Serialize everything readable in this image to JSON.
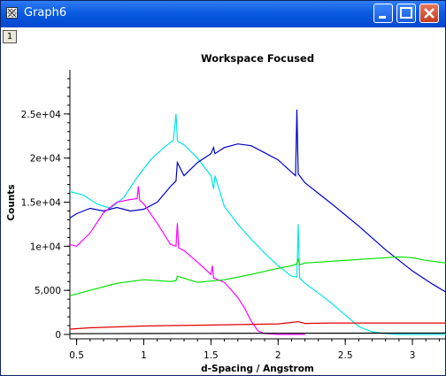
{
  "window": {
    "title": "Graph6",
    "layer_label": "1",
    "colors": {
      "titlebar": "#0a5be0",
      "close": "#d24a2a"
    }
  },
  "chart_data": {
    "type": "line",
    "title": "Workspace Focused",
    "xlabel": "d-Spacing / Angstrom",
    "ylabel": "Counts",
    "xlim": [
      0.45,
      3.25
    ],
    "ylim": [
      -500,
      30000
    ],
    "x_ticks": [
      0.5,
      1,
      1.5,
      2,
      2.5,
      3
    ],
    "x_tick_labels": [
      "0.5",
      "1",
      "1.5",
      "2",
      "2.5",
      "3"
    ],
    "y_ticks": [
      0,
      5000,
      10000,
      15000,
      20000,
      25000
    ],
    "y_tick_labels": [
      "0",
      "5,000",
      "1e+04",
      "1.5e+04",
      "2e+04",
      "2.5e+04"
    ],
    "grid": false,
    "series": [
      {
        "color": "#00e5e5",
        "x": [
          0.45,
          0.55,
          0.65,
          0.75,
          0.85,
          0.95,
          1.05,
          1.15,
          1.22,
          1.24,
          1.25,
          1.26,
          1.3,
          1.4,
          1.5,
          1.52,
          1.53,
          1.6,
          1.7,
          1.8,
          1.9,
          2.0,
          2.1,
          2.14,
          2.15,
          2.16,
          2.2,
          2.3,
          2.4,
          2.5,
          2.6,
          2.7,
          2.8,
          2.9,
          3.0,
          3.1,
          3.25
        ],
        "y": [
          16200,
          15800,
          14800,
          14300,
          15500,
          17800,
          19800,
          21200,
          22000,
          25000,
          22000,
          21800,
          21500,
          20000,
          18000,
          16500,
          18000,
          14500,
          12500,
          10800,
          9200,
          7800,
          6600,
          6500,
          12500,
          6400,
          5800,
          4700,
          3500,
          2200,
          900,
          300,
          100,
          0,
          0,
          0,
          0
        ]
      },
      {
        "color": "#0000c8",
        "x": [
          0.45,
          0.5,
          0.6,
          0.7,
          0.8,
          0.9,
          1.0,
          1.1,
          1.2,
          1.24,
          1.25,
          1.3,
          1.4,
          1.5,
          1.52,
          1.53,
          1.6,
          1.7,
          1.8,
          1.9,
          2.0,
          2.1,
          2.13,
          2.14,
          2.15,
          2.17,
          2.2,
          2.4,
          2.6,
          2.8,
          3.0,
          3.15,
          3.25
        ],
        "y": [
          13200,
          13700,
          14300,
          14000,
          14400,
          14000,
          14200,
          15000,
          16800,
          17400,
          19500,
          18000,
          19500,
          20500,
          21200,
          20500,
          21200,
          21600,
          21400,
          20600,
          19800,
          18400,
          18000,
          25500,
          18200,
          17800,
          17200,
          14800,
          12300,
          9600,
          7200,
          5700,
          4800
        ]
      },
      {
        "color": "#ff00ff",
        "x": [
          0.45,
          0.5,
          0.6,
          0.7,
          0.8,
          0.9,
          0.95,
          0.96,
          0.97,
          1.0,
          1.1,
          1.2,
          1.24,
          1.25,
          1.26,
          1.3,
          1.4,
          1.5,
          1.51,
          1.52,
          1.6,
          1.7,
          1.75,
          1.8,
          1.85,
          1.9,
          1.95,
          2.0,
          2.1,
          2.2
        ],
        "y": [
          10200,
          10000,
          11500,
          13800,
          15000,
          15300,
          15400,
          16800,
          15200,
          14800,
          12600,
          10200,
          10000,
          12600,
          9800,
          9500,
          8200,
          6800,
          7800,
          6400,
          5900,
          4200,
          3000,
          1500,
          400,
          100,
          50,
          0,
          0,
          0
        ]
      },
      {
        "color": "#00e000",
        "x": [
          0.45,
          0.6,
          0.8,
          1.0,
          1.2,
          1.24,
          1.25,
          1.4,
          1.6,
          1.8,
          2.0,
          2.1,
          2.14,
          2.15,
          2.16,
          2.2,
          2.4,
          2.6,
          2.8,
          2.9,
          3.0,
          3.1,
          3.25
        ],
        "y": [
          4400,
          5000,
          5800,
          6200,
          6000,
          6100,
          6600,
          5900,
          6200,
          6800,
          7500,
          7800,
          8000,
          8600,
          7900,
          8100,
          8300,
          8500,
          8700,
          8800,
          8700,
          8400,
          8100
        ]
      },
      {
        "color": "#e00000",
        "x": [
          0.45,
          0.6,
          0.8,
          1.0,
          1.2,
          1.4,
          1.6,
          1.8,
          2.0,
          2.15,
          2.2,
          2.4,
          2.6,
          2.8,
          3.0,
          3.25
        ],
        "y": [
          600,
          750,
          850,
          950,
          1000,
          1050,
          1100,
          1150,
          1200,
          1450,
          1250,
          1300,
          1300,
          1300,
          1300,
          1300
        ]
      },
      {
        "color": "#000000",
        "x": [
          0.45,
          1.0,
          1.5,
          2.0,
          2.5,
          3.0,
          3.25
        ],
        "y": [
          80,
          100,
          120,
          130,
          140,
          150,
          150
        ]
      }
    ]
  }
}
